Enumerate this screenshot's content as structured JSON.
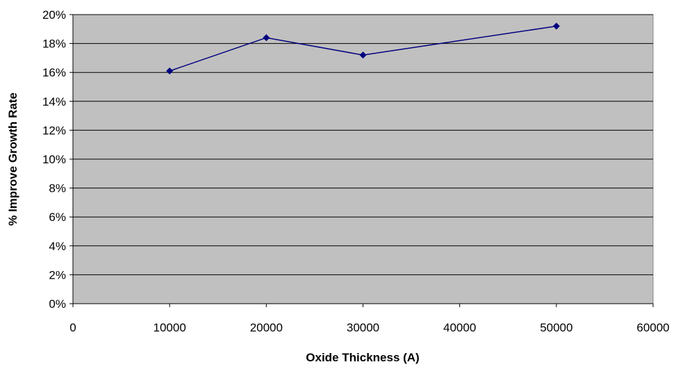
{
  "chart_data": {
    "type": "line",
    "title": "",
    "xlabel": "Oxide Thickness (A)",
    "ylabel": "% Improve Growth Rate",
    "xlim": [
      0,
      60000
    ],
    "ylim": [
      0,
      20
    ],
    "x_ticks": [
      "0",
      "10000",
      "20000",
      "30000",
      "40000",
      "50000",
      "60000"
    ],
    "y_ticks": [
      "0%",
      "2%",
      "4%",
      "6%",
      "8%",
      "10%",
      "12%",
      "14%",
      "16%",
      "18%",
      "20%"
    ],
    "grid": "horizontal",
    "plot_background": "#C0C0C0",
    "series": [
      {
        "color": "#000080",
        "marker": "diamond",
        "x": [
          10000,
          20000,
          30000,
          50000
        ],
        "y": [
          16.1,
          18.4,
          17.2,
          19.2
        ]
      }
    ]
  }
}
